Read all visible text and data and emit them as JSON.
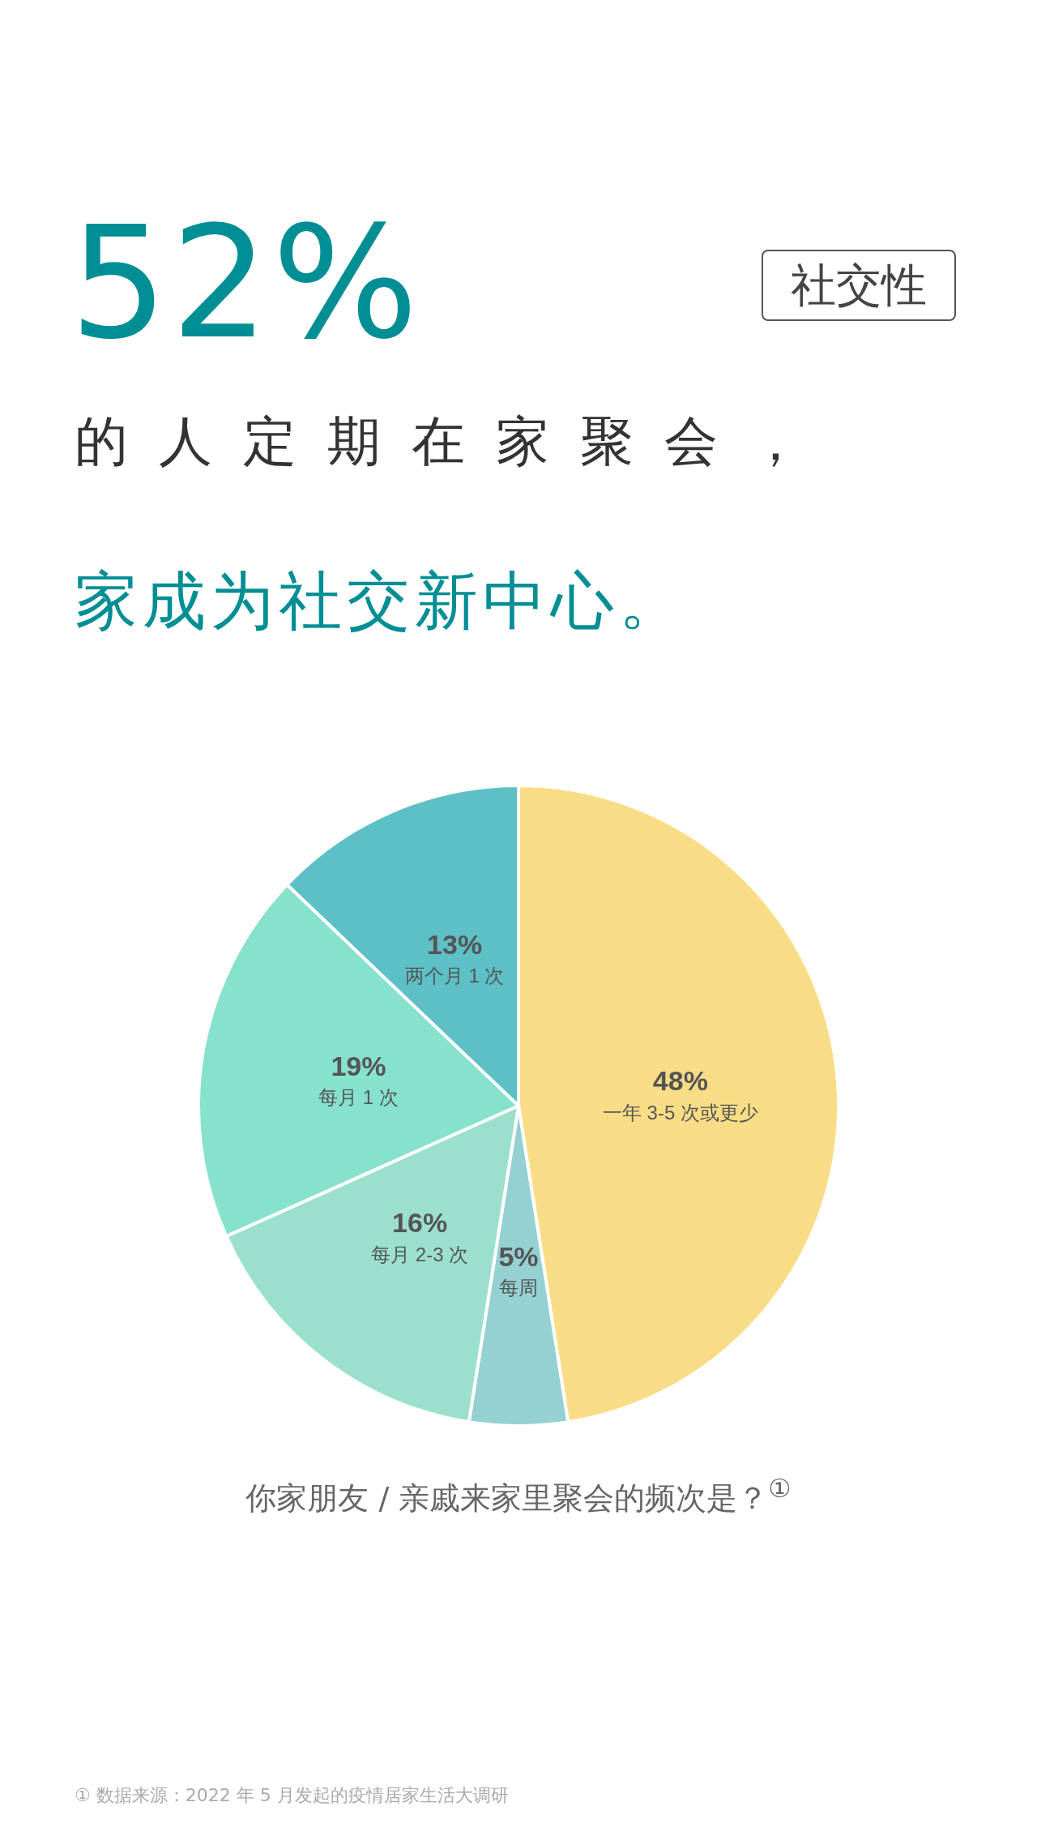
{
  "chart_data": {
    "type": "pie",
    "title": "52%",
    "subtitle": "的人定期在家聚会，",
    "annotations": [
      "社交性",
      "家成为社交新中心。",
      "你家朋友 / 亲戚来家里聚会的频次是？$^{①}$",
      "① 数据来源：2022 年 5 月发起的疫情居家生活大调研"
    ],
    "categories": [
      "一年 3-5 次或更少",
      "每周",
      "每月 2-3 次",
      "每月 1 次",
      "两个月 1 次"
    ],
    "values": [
      48,
      5,
      16,
      19,
      13
    ],
    "value_labels": [
      "48%",
      "5%",
      "16%",
      "19%",
      "13%"
    ],
    "colors": [
      "#f9dd86",
      "#95d0d2",
      "#9be0cd",
      "#86e1cd",
      "#5cc0c6"
    ],
    "legend": false
  }
}
